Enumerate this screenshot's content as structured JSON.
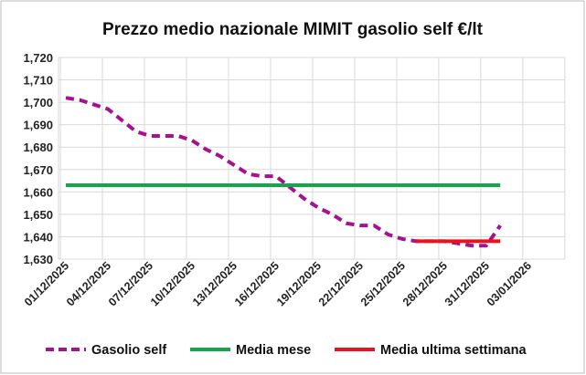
{
  "chart_data": {
    "type": "line",
    "title": "Prezzo medio nazionale MIMIT gasolio self €/lt",
    "xlabel": "",
    "ylabel": "",
    "ylim": [
      1.63,
      1.72
    ],
    "yticks": [
      "1,630",
      "1,640",
      "1,650",
      "1,660",
      "1,670",
      "1,680",
      "1,690",
      "1,700",
      "1,710",
      "1,720"
    ],
    "xticks": [
      "01/12/2025",
      "04/12/2025",
      "07/12/2025",
      "10/12/2025",
      "13/12/2025",
      "16/12/2025",
      "19/12/2025",
      "22/12/2025",
      "25/12/2025",
      "28/12/2025",
      "31/12/2025",
      "03/01/2026"
    ],
    "x_start": "01/12/2025",
    "grid": true,
    "legend_position": "bottom",
    "series": [
      {
        "name": "Gasolio self",
        "color": "#A5128F",
        "style": "dashed",
        "start_day": 0,
        "values": [
          1.702,
          1.701,
          1.699,
          1.697,
          1.692,
          1.687,
          1.685,
          1.685,
          1.685,
          1.683,
          1.679,
          1.676,
          1.672,
          1.668,
          1.667,
          1.667,
          1.662,
          1.657,
          1.653,
          1.65,
          1.646,
          1.645,
          1.645,
          1.641,
          1.639,
          1.638,
          1.638,
          1.638,
          1.637,
          1.636,
          1.636,
          1.645
        ]
      },
      {
        "name": "Media mese",
        "color": "#12A84A",
        "style": "solid",
        "start_day": 0,
        "end_day": 31,
        "value": 1.663
      },
      {
        "name": "Media ultima settimana",
        "color": "#E8141B",
        "style": "solid",
        "start_day": 25,
        "end_day": 31,
        "value": 1.638
      }
    ]
  }
}
